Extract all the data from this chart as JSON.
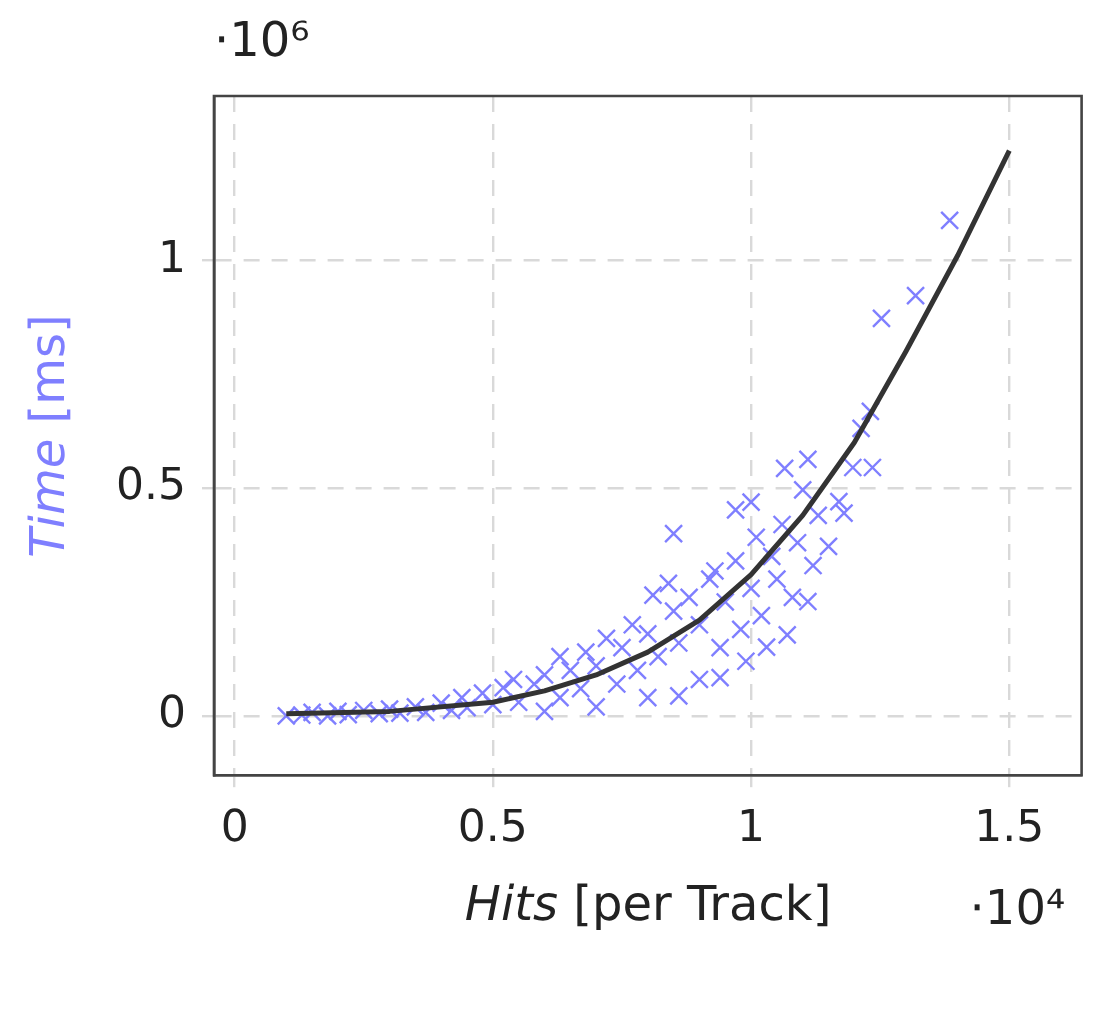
{
  "chart_data": {
    "type": "scatter",
    "xlabel": "Hits [per Track]",
    "ylabel": "Time [ms]",
    "annotations": [
      "·10⁶",
      "·10⁴"
    ],
    "xlim": [
      -0.04,
      1.64
    ],
    "ylim": [
      -0.13,
      1.36
    ],
    "xticks": [
      0,
      0.5,
      1,
      1.5
    ],
    "yticks": [
      0,
      0.5,
      1
    ],
    "grid": true,
    "legend": false,
    "series": [
      {
        "color": "#7f7fff",
        "marker": "cross",
        "x": [
          0.1,
          0.13,
          0.15,
          0.18,
          0.2,
          0.22,
          0.25,
          0.28,
          0.3,
          0.32,
          0.35,
          0.37,
          0.4,
          0.42,
          0.44,
          0.45,
          0.48,
          0.5,
          0.52,
          0.54,
          0.55,
          0.58,
          0.6,
          0.6,
          0.63,
          0.63,
          0.65,
          0.67,
          0.68,
          0.7,
          0.7,
          0.72,
          0.74,
          0.75,
          0.77,
          0.78,
          0.8,
          0.8,
          0.81,
          0.82,
          0.84,
          0.85,
          0.85,
          0.86,
          0.86,
          0.88,
          0.9,
          0.9,
          0.92,
          0.93,
          0.94,
          0.94,
          0.95,
          0.97,
          0.97,
          0.98,
          0.99,
          1,
          1,
          1.01,
          1.02,
          1.03,
          1.04,
          1.05,
          1.06,
          1.07,
          1.065,
          1.08,
          1.09,
          1.1,
          1.11,
          1.11,
          1.12,
          1.13,
          1.15,
          1.17,
          1.18,
          1.197,
          1.213,
          1.231,
          1.235,
          1.2525,
          1.3185,
          1.3845
        ],
        "values": [
          0,
          0.002,
          0.008,
          0,
          0.01,
          0.003,
          0.012,
          0.005,
          0.015,
          0.006,
          0.02,
          0.008,
          0.028,
          0.012,
          0.04,
          0.018,
          0.05,
          0.025,
          0.062,
          0.08,
          0.03,
          0.07,
          0.01,
          0.09,
          0.13,
          0.04,
          0.1,
          0.06,
          0.14,
          0.02,
          0.11,
          0.17,
          0.07,
          0.15,
          0.2,
          0.1,
          0.04,
          0.18,
          0.265,
          0.13,
          0.291,
          0.4,
          0.23,
          0.16,
          0.044,
          0.26,
          0.2,
          0.08,
          0.3,
          0.318,
          0.15,
          0.084,
          0.25,
          0.34,
          0.452,
          0.19,
          0.12,
          0.469,
          0.28,
          0.392,
          0.22,
          0.151,
          0.35,
          0.3,
          0.42,
          0.178,
          0.543,
          0.26,
          0.38,
          0.496,
          0.251,
          0.563,
          0.33,
          0.44,
          0.372,
          0.47,
          0.445,
          0.545,
          0.631,
          0.668,
          0.545,
          0.872,
          0.922,
          1.087
        ]
      },
      {
        "type": "line",
        "color": "#333333",
        "marker": "none",
        "x": [
          0.1,
          0.3,
          0.5,
          0.6,
          0.7,
          0.8,
          0.9,
          1,
          1.1,
          1.2,
          1.3,
          1.4,
          1.5
        ],
        "values": [
          0.005,
          0.01,
          0.03,
          0.055,
          0.09,
          0.14,
          0.21,
          0.31,
          0.44,
          0.6,
          0.8,
          1.01,
          1.24
        ]
      }
    ]
  }
}
